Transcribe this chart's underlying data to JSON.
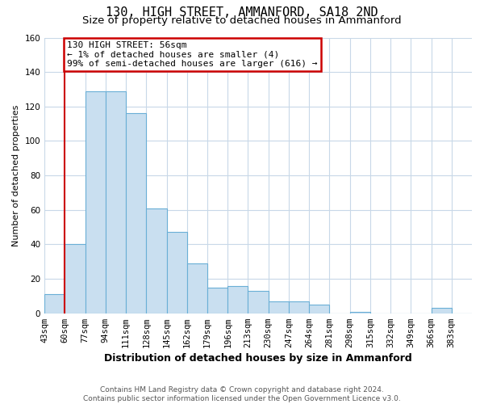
{
  "title": "130, HIGH STREET, AMMANFORD, SA18 2ND",
  "subtitle": "Size of property relative to detached houses in Ammanford",
  "xlabel": "Distribution of detached houses by size in Ammanford",
  "ylabel": "Number of detached properties",
  "bin_labels": [
    "43sqm",
    "60sqm",
    "77sqm",
    "94sqm",
    "111sqm",
    "128sqm",
    "145sqm",
    "162sqm",
    "179sqm",
    "196sqm",
    "213sqm",
    "230sqm",
    "247sqm",
    "264sqm",
    "281sqm",
    "298sqm",
    "315sqm",
    "332sqm",
    "349sqm",
    "366sqm",
    "383sqm"
  ],
  "bar_heights": [
    11,
    40,
    129,
    129,
    116,
    61,
    47,
    29,
    15,
    16,
    13,
    7,
    7,
    5,
    0,
    1,
    0,
    0,
    0,
    3,
    0
  ],
  "bar_color": "#c9dff0",
  "bar_edge_color": "#6aafd6",
  "ylim": [
    0,
    160
  ],
  "yticks": [
    0,
    20,
    40,
    60,
    80,
    100,
    120,
    140,
    160
  ],
  "marker_label": "130 HIGH STREET: 56sqm",
  "annotation_line1": "← 1% of detached houses are smaller (4)",
  "annotation_line2": "99% of semi-detached houses are larger (616) →",
  "annotation_box_color": "#ffffff",
  "annotation_box_edge": "#cc0000",
  "marker_line_color": "#cc0000",
  "footer_line1": "Contains HM Land Registry data © Crown copyright and database right 2024.",
  "footer_line2": "Contains public sector information licensed under the Open Government Licence v3.0.",
  "plot_bg_color": "#ffffff",
  "fig_bg_color": "#ffffff",
  "grid_color": "#c8d8e8",
  "title_fontsize": 11,
  "subtitle_fontsize": 9.5,
  "xlabel_fontsize": 9,
  "ylabel_fontsize": 8,
  "tick_fontsize": 7.5,
  "footer_fontsize": 6.5,
  "annot_fontsize": 8
}
